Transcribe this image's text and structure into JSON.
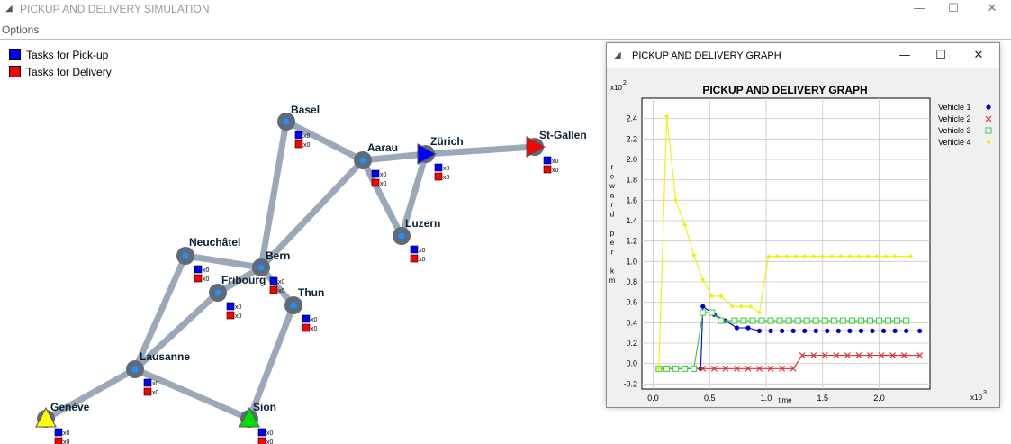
{
  "window": {
    "title": "PICKUP AND DELIVERY SIMULATION",
    "minimize": "—",
    "maximize": "☐",
    "close": "✕"
  },
  "menu": {
    "options": "Options"
  },
  "legend": {
    "pickup": {
      "label": "Tasks for Pick-up",
      "color": "#0000ff"
    },
    "delivery": {
      "label": "Tasks for Delivery",
      "color": "#ff0000"
    }
  },
  "map": {
    "road_color": "#9aa8b8",
    "city_color": "#5f6b78",
    "city_center_color": "#1e90ff",
    "cities": [
      {
        "name": "Basel",
        "pickup": "x0",
        "delivery": "x0"
      },
      {
        "name": "Aarau",
        "pickup": "x0",
        "delivery": "x0"
      },
      {
        "name": "Zürich",
        "pickup": "x0",
        "delivery": "x0"
      },
      {
        "name": "St-Gallen",
        "pickup": "x0",
        "delivery": "x0"
      },
      {
        "name": "Luzern",
        "pickup": "x0",
        "delivery": "x0"
      },
      {
        "name": "Neuchâtel",
        "pickup": "x0",
        "delivery": "x0"
      },
      {
        "name": "Bern",
        "pickup": "x0",
        "delivery": "x0"
      },
      {
        "name": "Fribourg",
        "pickup": "x0",
        "delivery": "x0"
      },
      {
        "name": "Thun",
        "pickup": "x0",
        "delivery": "x0"
      },
      {
        "name": "Lausanne",
        "pickup": "x0",
        "delivery": "x0"
      },
      {
        "name": "Genève",
        "pickup": "x0",
        "delivery": "x0"
      },
      {
        "name": "Sion",
        "pickup": "x0",
        "delivery": "x0"
      }
    ],
    "roads": [
      [
        "Basel",
        "Aarau"
      ],
      [
        "Basel",
        "Bern"
      ],
      [
        "Aarau",
        "Zürich"
      ],
      [
        "Aarau",
        "Luzern"
      ],
      [
        "Aarau",
        "Bern"
      ],
      [
        "Zürich",
        "St-Gallen"
      ],
      [
        "Zürich",
        "Luzern"
      ],
      [
        "Neuchâtel",
        "Bern"
      ],
      [
        "Neuchâtel",
        "Lausanne"
      ],
      [
        "Bern",
        "Fribourg"
      ],
      [
        "Bern",
        "Thun"
      ],
      [
        "Fribourg",
        "Lausanne"
      ],
      [
        "Thun",
        "Sion"
      ],
      [
        "Lausanne",
        "Genève"
      ],
      [
        "Lausanne",
        "Sion"
      ]
    ],
    "vehicles": [
      {
        "at": "Zürich",
        "shape": "triangle-right",
        "color": "#0000ff"
      },
      {
        "at": "St-Gallen",
        "shape": "triangle-right",
        "color": "#ff0000"
      },
      {
        "at": "Genève",
        "shape": "triangle-up",
        "color": "#ffff00"
      },
      {
        "at": "Sion",
        "shape": "triangle-up",
        "color": "#00dd00"
      }
    ]
  },
  "graph_window": {
    "title": "PICKUP AND DELIVERY GRAPH",
    "minimize": "—",
    "maximize": "☐",
    "close": "✕",
    "icon": "app-icon"
  },
  "chart_data": {
    "type": "line",
    "title": "PICKUP AND DELIVERY GRAPH",
    "xlabel": "time",
    "ylabel": "reward per km",
    "x_multiplier": "x10",
    "x_exponent": "3",
    "y_multiplier": "x10",
    "y_exponent": "2",
    "xlim": [
      -0.1,
      2.45
    ],
    "ylim": [
      -0.25,
      2.6
    ],
    "xticks": [
      "0.0",
      "0.5",
      "1.0",
      "1.5",
      "2.0"
    ],
    "xtick_values": [
      0,
      0.5,
      1.0,
      1.5,
      2.0
    ],
    "yticks": [
      "-0.2",
      "0.0",
      "0.2",
      "0.4",
      "0.6",
      "0.8",
      "1.0",
      "1.2",
      "1.4",
      "1.6",
      "1.8",
      "2.0",
      "2.2",
      "2.4"
    ],
    "ytick_values": [
      -0.2,
      0,
      0.2,
      0.4,
      0.6,
      0.8,
      1.0,
      1.2,
      1.4,
      1.6,
      1.8,
      2.0,
      2.2,
      2.4
    ],
    "grid": true,
    "legend_position": "right",
    "series": [
      {
        "name": "Vehicle 1",
        "color": "#0000cc",
        "marker": "dot",
        "x": [
          0.05,
          0.12,
          0.2,
          0.28,
          0.36,
          0.42,
          0.44,
          0.54,
          0.64,
          0.74,
          0.84,
          0.94,
          1.04,
          1.14,
          1.24,
          1.34,
          1.44,
          1.54,
          1.64,
          1.74,
          1.84,
          1.94,
          2.04,
          2.14,
          2.24,
          2.36
        ],
        "y": [
          -0.05,
          -0.05,
          -0.05,
          -0.05,
          -0.05,
          -0.05,
          0.56,
          0.48,
          0.42,
          0.35,
          0.35,
          0.32,
          0.32,
          0.32,
          0.32,
          0.32,
          0.32,
          0.32,
          0.32,
          0.32,
          0.32,
          0.32,
          0.32,
          0.32,
          0.32,
          0.32
        ]
      },
      {
        "name": "Vehicle 2",
        "color": "#dd3333",
        "marker": "x",
        "x": [
          0.05,
          0.12,
          0.2,
          0.28,
          0.36,
          0.44,
          0.54,
          0.64,
          0.74,
          0.84,
          0.94,
          1.04,
          1.14,
          1.24,
          1.32,
          1.42,
          1.52,
          1.62,
          1.72,
          1.82,
          1.92,
          2.02,
          2.12,
          2.22,
          2.36
        ],
        "y": [
          -0.05,
          -0.05,
          -0.05,
          -0.05,
          -0.05,
          -0.05,
          -0.05,
          -0.05,
          -0.05,
          -0.05,
          -0.05,
          -0.05,
          -0.05,
          -0.05,
          0.08,
          0.08,
          0.08,
          0.08,
          0.08,
          0.08,
          0.08,
          0.08,
          0.08,
          0.08,
          0.08
        ]
      },
      {
        "name": "Vehicle 3",
        "color": "#33cc33",
        "marker": "square",
        "x": [
          0.05,
          0.12,
          0.2,
          0.28,
          0.36,
          0.44,
          0.52,
          0.6,
          0.72,
          0.8,
          0.88,
          0.96,
          1.04,
          1.12,
          1.2,
          1.28,
          1.36,
          1.44,
          1.52,
          1.6,
          1.68,
          1.76,
          1.84,
          1.92,
          2.0,
          2.08,
          2.16,
          2.24
        ],
        "y": [
          -0.05,
          -0.05,
          -0.05,
          -0.05,
          -0.05,
          0.5,
          0.5,
          0.42,
          0.42,
          0.42,
          0.42,
          0.42,
          0.42,
          0.42,
          0.42,
          0.42,
          0.42,
          0.42,
          0.42,
          0.42,
          0.42,
          0.42,
          0.42,
          0.42,
          0.42,
          0.42,
          0.42,
          0.42
        ]
      },
      {
        "name": "Vehicle 4",
        "color": "#f0f000",
        "marker": "diamond",
        "x": [
          0.05,
          0.12,
          0.2,
          0.28,
          0.36,
          0.44,
          0.52,
          0.6,
          0.7,
          0.78,
          0.86,
          0.94,
          1.02,
          1.1,
          1.18,
          1.26,
          1.34,
          1.42,
          1.5,
          1.58,
          1.66,
          1.74,
          1.82,
          1.9,
          1.98,
          2.06,
          2.14,
          2.28
        ],
        "y": [
          -0.05,
          2.42,
          1.6,
          1.36,
          1.06,
          0.82,
          0.66,
          0.66,
          0.56,
          0.56,
          0.56,
          0.5,
          1.05,
          1.05,
          1.05,
          1.05,
          1.05,
          1.05,
          1.05,
          1.05,
          1.05,
          1.05,
          1.05,
          1.05,
          1.05,
          1.05,
          1.05,
          1.05
        ]
      }
    ]
  }
}
